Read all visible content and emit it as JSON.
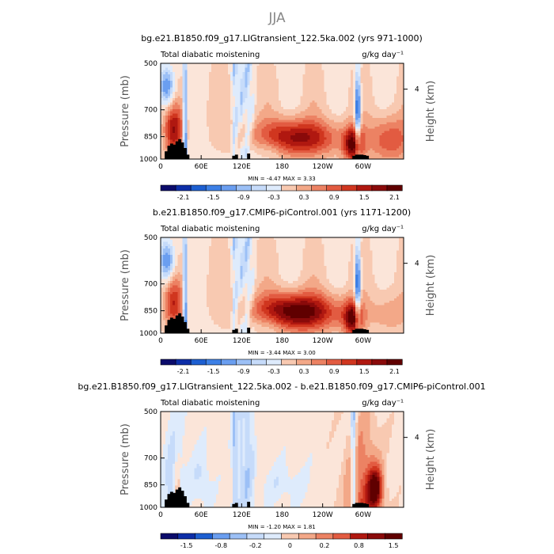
{
  "figure": {
    "title": "JJA"
  },
  "colormap": [
    "#0b0b6b",
    "#0d2ea8",
    "#1d5fd1",
    "#3d80e6",
    "#6a9ef0",
    "#9cc0f6",
    "#c6dbfa",
    "#deebfc",
    "#fbe5d9",
    "#f8c9b1",
    "#f3a888",
    "#ec8263",
    "#e25b41",
    "#d0361f",
    "#b01810",
    "#8a0a0a",
    "#600000"
  ],
  "chart_data": [
    {
      "type": "heatmap",
      "title": "bg.e21.B1850.f09_g17.LIGtransient_122.5ka.002 (yrs 971-1000)",
      "left_label": "Total diabatic moistening",
      "units": "g/kg day⁻¹",
      "ylabel": "Pressure (mb)",
      "y2label": "Height (km)",
      "xticks": [
        "0",
        "60E",
        "120E",
        "180",
        "120W",
        "60W"
      ],
      "yticks": [
        "500",
        "700",
        "850",
        "1000"
      ],
      "y2ticks": [
        "4"
      ],
      "stats": {
        "min_label": "MIN =",
        "min": "-4.47",
        "max_label": "MAX =",
        "max": "3.33"
      },
      "colorbar_labels": [
        "-2.1",
        "-1.5",
        "-0.9",
        "-0.3",
        "0.3",
        "0.9",
        "1.5",
        "2.1"
      ],
      "value_range": [
        -2.4,
        2.4
      ]
    },
    {
      "type": "heatmap",
      "title": "b.e21.B1850.f09_g17.CMIP6-piControl.001 (yrs 1171-1200)",
      "left_label": "Total diabatic moistening",
      "units": "g/kg day⁻¹",
      "ylabel": "Pressure (mb)",
      "y2label": "Height (km)",
      "xticks": [
        "0",
        "60E",
        "120E",
        "180",
        "120W",
        "60W"
      ],
      "yticks": [
        "500",
        "700",
        "850",
        "1000"
      ],
      "y2ticks": [
        "4"
      ],
      "stats": {
        "min_label": "MIN =",
        "min": "-3.44",
        "max_label": "MAX =",
        "max": "3.00"
      },
      "colorbar_labels": [
        "-2.1",
        "-1.5",
        "-0.9",
        "-0.3",
        "0.3",
        "0.9",
        "1.5",
        "2.1"
      ],
      "value_range": [
        -2.4,
        2.4
      ]
    },
    {
      "type": "heatmap",
      "title": "bg.e21.B1850.f09_g17.LIGtransient_122.5ka.002 - b.e21.B1850.f09_g17.CMIP6-piControl.001",
      "left_label": "Total diabatic moistening",
      "units": "g/kg day⁻¹",
      "ylabel": "Pressure (mb)",
      "y2label": "Height (km)",
      "xticks": [
        "0",
        "60E",
        "120E",
        "180",
        "120W",
        "60W"
      ],
      "yticks": [
        "500",
        "700",
        "850",
        "1000"
      ],
      "y2ticks": [
        "4"
      ],
      "stats": {
        "min_label": "MIN =",
        "min": "-1.20",
        "max_label": "MAX =",
        "max": "1.81"
      },
      "colorbar_labels": [
        "-1.5",
        "-0.8",
        "-0.2",
        "0",
        "0.2",
        "0.8",
        "1.5"
      ],
      "value_range": [
        -1.8,
        1.8
      ]
    }
  ]
}
